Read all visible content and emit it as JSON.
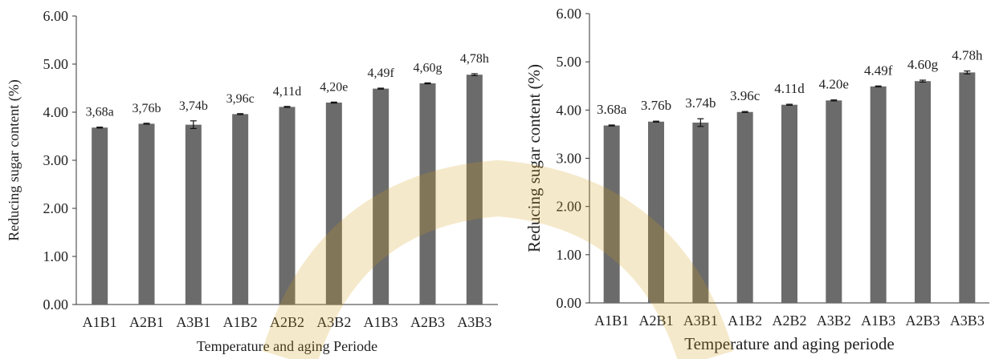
{
  "theme": {
    "bar_color": "#6b6b6b",
    "axis_color": "#333333",
    "error_color": "#111111",
    "watermark_color": "#d4a017"
  },
  "chart_data": [
    {
      "type": "bar",
      "categories": [
        "A1B1",
        "A2B1",
        "A3B1",
        "A1B2",
        "A2B2",
        "A3B2",
        "A1B3",
        "A2B3",
        "A3B3"
      ],
      "values": [
        3.68,
        3.76,
        3.74,
        3.96,
        4.11,
        4.2,
        4.49,
        4.6,
        4.78
      ],
      "errors": [
        0.01,
        0.01,
        0.08,
        0.01,
        0.01,
        0.01,
        0.01,
        0.01,
        0.02
      ],
      "data_labels": [
        "3,68a",
        "3,76b",
        "3,74b",
        "3,96c",
        "4,11d",
        "4,20e",
        "4,49f",
        "4,60g",
        "4,78h"
      ],
      "xlabel": "Temperature  and  aging  Periode",
      "ylabel": "Reducing  sugar content (%)",
      "ylim": [
        0,
        6
      ],
      "yticks": [
        "0.00",
        "1.00",
        "2.00",
        "3.00",
        "4.00",
        "5.00",
        "6.00"
      ],
      "grid": false,
      "legend": "none"
    },
    {
      "type": "bar",
      "categories": [
        "A1B1",
        "A2B1",
        "A3B1",
        "A1B2",
        "A2B2",
        "A3B2",
        "A1B3",
        "A2B3",
        "A3B3"
      ],
      "values": [
        3.68,
        3.76,
        3.74,
        3.96,
        4.11,
        4.2,
        4.49,
        4.6,
        4.78
      ],
      "errors": [
        0.01,
        0.01,
        0.08,
        0.01,
        0.01,
        0.01,
        0.01,
        0.02,
        0.03
      ],
      "data_labels": [
        "3.68a",
        "3.76b",
        "3.74b",
        "3.96c",
        "4.11d",
        "4.20e",
        "4.49f",
        "4.60g",
        "4.78h"
      ],
      "xlabel": "Temperature  and  aging  periode",
      "ylabel": "Reducing  sugar content (%)",
      "ylim": [
        0,
        6
      ],
      "yticks": [
        "0.00",
        "1.00",
        "2.00",
        "3.00",
        "4.00",
        "5.00",
        "6.00"
      ],
      "grid": false,
      "legend": "none"
    }
  ]
}
